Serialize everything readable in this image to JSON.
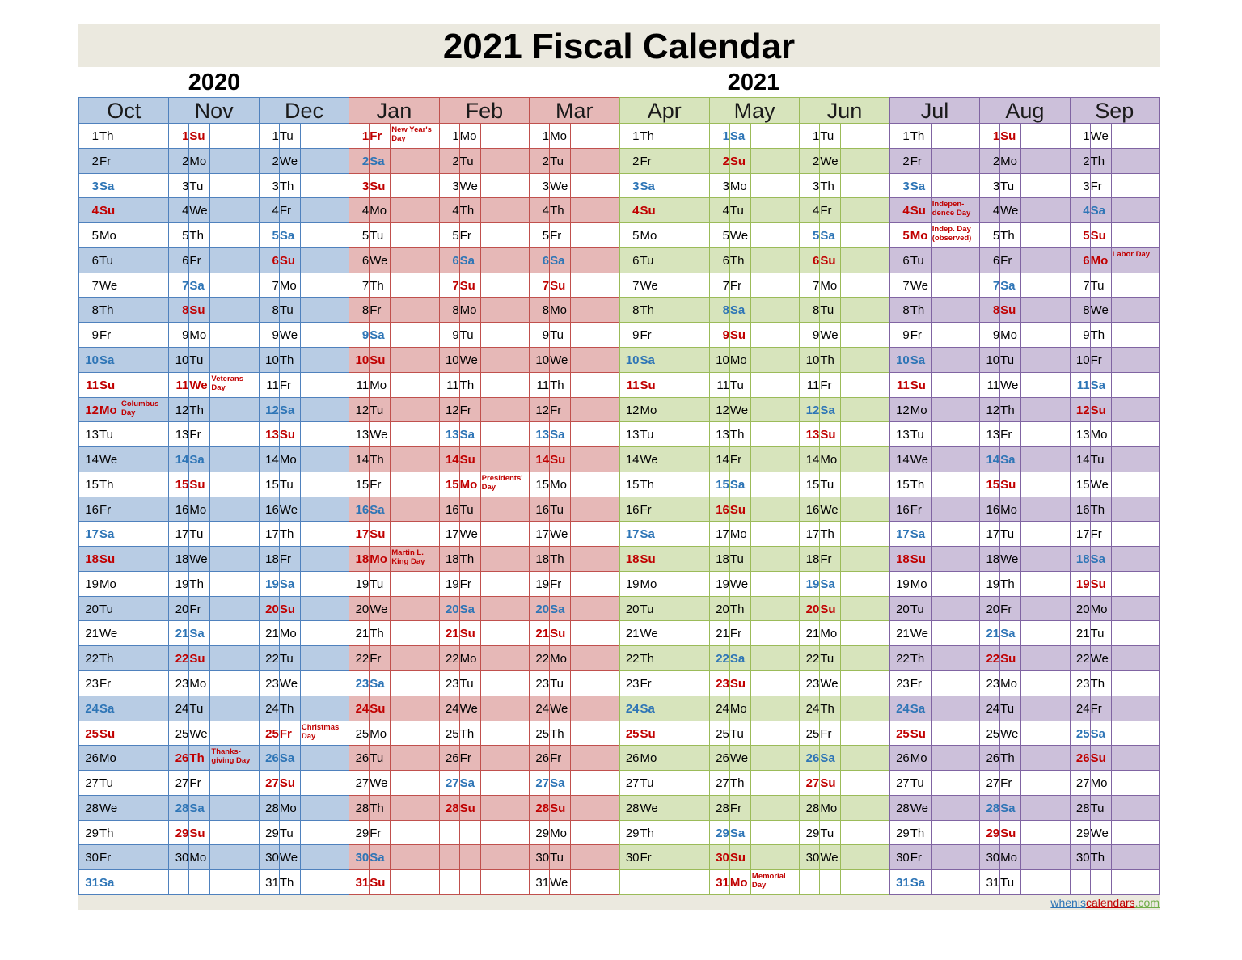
{
  "title": "2021 Fiscal Calendar",
  "years": [
    "2020",
    "2021"
  ],
  "credit": {
    "part1": "whenis",
    "part2": "calendars",
    "part3": ".com"
  },
  "weekday_abbr": [
    "Mo",
    "Tu",
    "We",
    "Th",
    "Fr",
    "Sa",
    "Su"
  ],
  "quarter_colors": {
    "q1": {
      "shade": "#b8cce4",
      "line": "#4f81bd"
    },
    "q2": {
      "shade": "#e6b8b7",
      "line": "#c0504d"
    },
    "q3": {
      "shade": "#d7e4bc",
      "line": "#9bbb59"
    },
    "q4": {
      "shade": "#ccc0da",
      "line": "#8064a2"
    }
  },
  "months": [
    {
      "name": "Oct",
      "year": 2020,
      "month": 10,
      "quarter": "q1",
      "holidays": {
        "12": "Columbus\nDay"
      }
    },
    {
      "name": "Nov",
      "year": 2020,
      "month": 11,
      "quarter": "q1",
      "holidays": {
        "11": "Veterans\nDay",
        "26": "Thanks-\ngiving Day"
      }
    },
    {
      "name": "Dec",
      "year": 2020,
      "month": 12,
      "quarter": "q1",
      "holidays": {
        "25": "Christmas\nDay"
      }
    },
    {
      "name": "Jan",
      "year": 2021,
      "month": 1,
      "quarter": "q2",
      "holidays": {
        "1": "New Year's\nDay",
        "18": "Martin L.\nKing Day"
      }
    },
    {
      "name": "Feb",
      "year": 2021,
      "month": 2,
      "quarter": "q2",
      "holidays": {
        "15": "Presidents'\nDay"
      }
    },
    {
      "name": "Mar",
      "year": 2021,
      "month": 3,
      "quarter": "q2",
      "holidays": {}
    },
    {
      "name": "Apr",
      "year": 2021,
      "month": 4,
      "quarter": "q3",
      "holidays": {}
    },
    {
      "name": "May",
      "year": 2021,
      "month": 5,
      "quarter": "q3",
      "holidays": {
        "31": "Memorial\nDay"
      }
    },
    {
      "name": "Jun",
      "year": 2021,
      "month": 6,
      "quarter": "q3",
      "holidays": {}
    },
    {
      "name": "Jul",
      "year": 2021,
      "month": 7,
      "quarter": "q4",
      "holidays": {
        "4": "Indepen-\ndence Day",
        "5": "Indep. Day\n(observed)"
      }
    },
    {
      "name": "Aug",
      "year": 2021,
      "month": 8,
      "quarter": "q4",
      "holidays": {}
    },
    {
      "name": "Sep",
      "year": 2021,
      "month": 9,
      "quarter": "q4",
      "holidays": {
        "6": "Labor Day"
      }
    }
  ]
}
